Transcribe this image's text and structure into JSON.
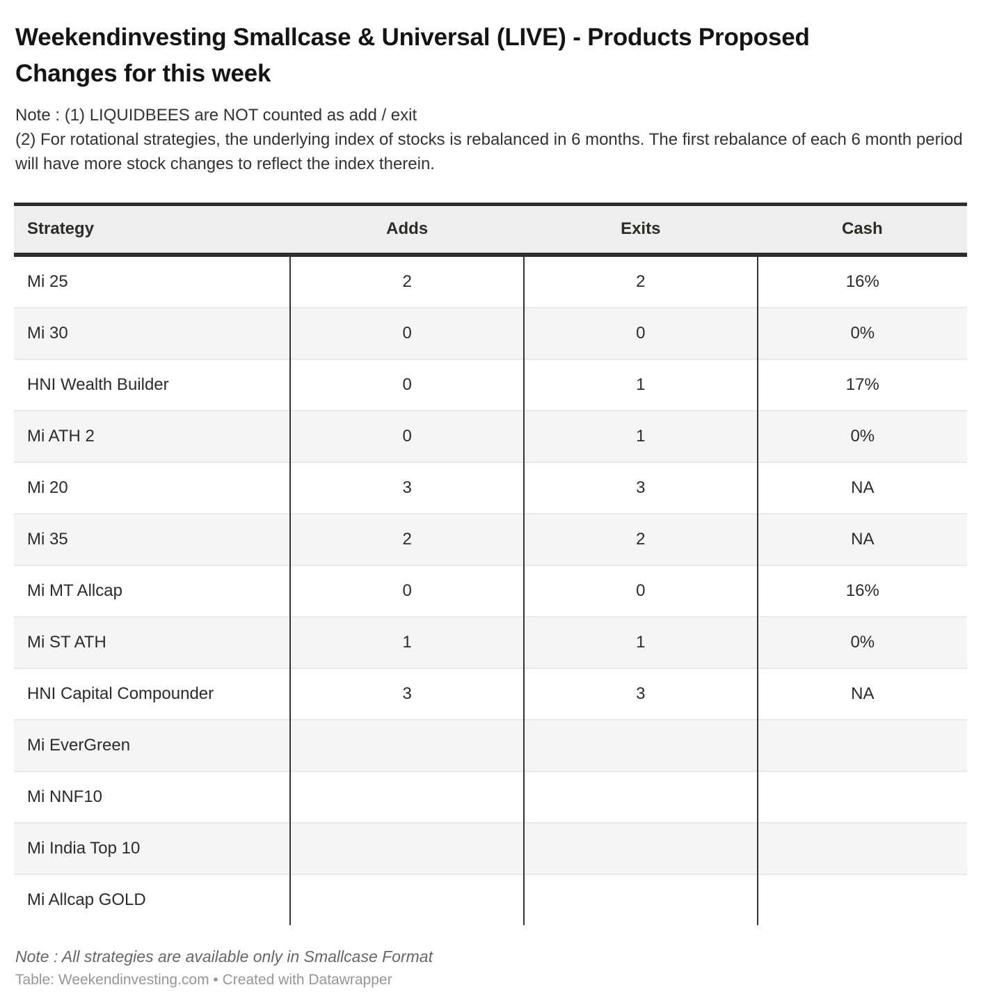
{
  "title": "Weekendinvesting Smallcase & Universal (LIVE) - Products Proposed Changes for this week",
  "notes": {
    "line1": "Note : (1) LIQUIDBEES are NOT counted as add / exit",
    "line2": "(2) For rotational strategies, the underlying index of stocks is rebalanced in 6 months. The first rebalance of each 6 month period will have more stock changes to reflect the index therein."
  },
  "chart_data": {
    "type": "table",
    "title": "Weekendinvesting Smallcase & Universal (LIVE) - Products Proposed Changes for this week",
    "columns": [
      "Strategy",
      "Adds",
      "Exits",
      "Cash"
    ],
    "rows": [
      [
        "Mi 25",
        "2",
        "2",
        "16%"
      ],
      [
        "Mi 30",
        "0",
        "0",
        "0%"
      ],
      [
        "HNI Wealth Builder",
        "0",
        "1",
        "17%"
      ],
      [
        "Mi ATH 2",
        "0",
        "1",
        "0%"
      ],
      [
        "Mi 20",
        "3",
        "3",
        "NA"
      ],
      [
        "Mi 35",
        "2",
        "2",
        "NA"
      ],
      [
        "Mi MT Allcap",
        "0",
        "0",
        "16%"
      ],
      [
        "Mi ST ATH",
        "1",
        "1",
        "0%"
      ],
      [
        "HNI Capital Compounder",
        "3",
        "3",
        "NA"
      ],
      [
        "Mi EverGreen",
        "",
        "",
        ""
      ],
      [
        "Mi NNF10",
        "",
        "",
        ""
      ],
      [
        "Mi India Top 10",
        "",
        "",
        ""
      ],
      [
        "Mi Allcap GOLD",
        "",
        "",
        ""
      ]
    ],
    "layout_hints": {
      "zebra_striping": true,
      "striped_row_color": "#f5f5f5",
      "header_background": "#eeeeee",
      "column_alignment": [
        "left",
        "center",
        "center",
        "center"
      ]
    }
  },
  "footer": {
    "note": "Note : All strategies are available only in Smallcase Format",
    "attribution": "Table: Weekendinvesting.com • Created with Datawrapper"
  },
  "colors": {
    "border_dark": "#2f2f2f",
    "header_bg": "#eeeeee",
    "stripe_bg": "#f5f5f5",
    "row_separator": "#e9e9e9",
    "text": "#2b2b2b",
    "note_text": "#666666",
    "attribution_text": "#969696"
  }
}
